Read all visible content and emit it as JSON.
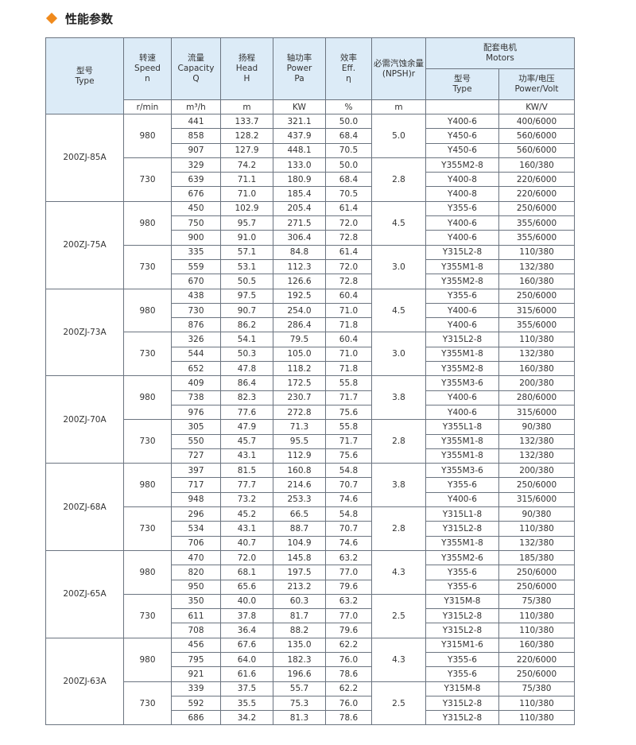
{
  "header": {
    "title": "性能参数"
  },
  "table": {
    "columns": [
      {
        "lines": [
          "型号",
          "Type"
        ]
      },
      {
        "lines": [
          "转速",
          "Speed",
          "n"
        ]
      },
      {
        "lines": [
          "流量",
          "Capacity",
          "Q"
        ]
      },
      {
        "lines": [
          "扬程",
          "Head",
          "H"
        ]
      },
      {
        "lines": [
          "轴功率",
          "Power",
          "Pa"
        ]
      },
      {
        "lines": [
          "效率",
          "Eff.",
          "η"
        ]
      },
      {
        "lines": [
          "必需汽蚀余量",
          "(NPSH)r"
        ]
      },
      {
        "lines": [
          "配套电机",
          "Motors"
        ],
        "sub": [
          {
            "lines": [
              "型号",
              "Type"
            ]
          },
          {
            "lines": [
              "功率/电压",
              "Power/Volt"
            ]
          }
        ]
      }
    ],
    "units": [
      "r/min",
      "m³/h",
      "m",
      "KW",
      "%",
      "m",
      null,
      "KW/V"
    ],
    "models": [
      {
        "type": "200ZJ-85A",
        "speeds": [
          {
            "speed": "980",
            "npsh": "5.0",
            "rows": [
              [
                "441",
                "133.7",
                "321.1",
                "50.0",
                "Y400-6",
                "400/6000"
              ],
              [
                "858",
                "128.2",
                "437.9",
                "68.4",
                "Y450-6",
                "560/6000"
              ],
              [
                "907",
                "127.9",
                "448.1",
                "70.5",
                "Y450-6",
                "560/6000"
              ]
            ]
          },
          {
            "speed": "730",
            "npsh": "2.8",
            "rows": [
              [
                "329",
                "74.2",
                "133.0",
                "50.0",
                "Y355M2-8",
                "160/380"
              ],
              [
                "639",
                "71.1",
                "180.9",
                "68.4",
                "Y400-8",
                "220/6000"
              ],
              [
                "676",
                "71.0",
                "185.4",
                "70.5",
                "Y400-8",
                "220/6000"
              ]
            ]
          }
        ]
      },
      {
        "type": "200ZJ-75A",
        "speeds": [
          {
            "speed": "980",
            "npsh": "4.5",
            "rows": [
              [
                "450",
                "102.9",
                "205.4",
                "61.4",
                "Y355-6",
                "250/6000"
              ],
              [
                "750",
                "95.7",
                "271.5",
                "72.0",
                "Y400-6",
                "355/6000"
              ],
              [
                "900",
                "91.0",
                "306.4",
                "72.8",
                "Y400-6",
                "355/6000"
              ]
            ]
          },
          {
            "speed": "730",
            "npsh": "3.0",
            "rows": [
              [
                "335",
                "57.1",
                "84.8",
                "61.4",
                "Y315L2-8",
                "110/380"
              ],
              [
                "559",
                "53.1",
                "112.3",
                "72.0",
                "Y355M1-8",
                "132/380"
              ],
              [
                "670",
                "50.5",
                "126.6",
                "72.8",
                "Y355M2-8",
                "160/380"
              ]
            ]
          }
        ]
      },
      {
        "type": "200ZJ-73A",
        "speeds": [
          {
            "speed": "980",
            "npsh": "4.5",
            "rows": [
              [
                "438",
                "97.5",
                "192.5",
                "60.4",
                "Y355-6",
                "250/6000"
              ],
              [
                "730",
                "90.7",
                "254.0",
                "71.0",
                "Y400-6",
                "315/6000"
              ],
              [
                "876",
                "86.2",
                "286.4",
                "71.8",
                "Y400-6",
                "355/6000"
              ]
            ]
          },
          {
            "speed": "730",
            "npsh": "3.0",
            "rows": [
              [
                "326",
                "54.1",
                "79.5",
                "60.4",
                "Y315L2-8",
                "110/380"
              ],
              [
                "544",
                "50.3",
                "105.0",
                "71.0",
                "Y355M1-8",
                "132/380"
              ],
              [
                "652",
                "47.8",
                "118.2",
                "71.8",
                "Y355M2-8",
                "160/380"
              ]
            ]
          }
        ]
      },
      {
        "type": "200ZJ-70A",
        "speeds": [
          {
            "speed": "980",
            "npsh": "3.8",
            "rows": [
              [
                "409",
                "86.4",
                "172.5",
                "55.8",
                "Y355M3-6",
                "200/380"
              ],
              [
                "738",
                "82.3",
                "230.7",
                "71.7",
                "Y400-6",
                "280/6000"
              ],
              [
                "976",
                "77.6",
                "272.8",
                "75.6",
                "Y400-6",
                "315/6000"
              ]
            ]
          },
          {
            "speed": "730",
            "npsh": "2.8",
            "rows": [
              [
                "305",
                "47.9",
                "71.3",
                "55.8",
                "Y355L1-8",
                "90/380"
              ],
              [
                "550",
                "45.7",
                "95.5",
                "71.7",
                "Y355M1-8",
                "132/380"
              ],
              [
                "727",
                "43.1",
                "112.9",
                "75.6",
                "Y355M1-8",
                "132/380"
              ]
            ]
          }
        ]
      },
      {
        "type": "200ZJ-68A",
        "speeds": [
          {
            "speed": "980",
            "npsh": "3.8",
            "rows": [
              [
                "397",
                "81.5",
                "160.8",
                "54.8",
                "Y355M3-6",
                "200/380"
              ],
              [
                "717",
                "77.7",
                "214.6",
                "70.7",
                "Y355-6",
                "250/6000"
              ],
              [
                "948",
                "73.2",
                "253.3",
                "74.6",
                "Y400-6",
                "315/6000"
              ]
            ]
          },
          {
            "speed": "730",
            "npsh": "2.8",
            "rows": [
              [
                "296",
                "45.2",
                "66.5",
                "54.8",
                "Y315L1-8",
                "90/380"
              ],
              [
                "534",
                "43.1",
                "88.7",
                "70.7",
                "Y315L2-8",
                "110/380"
              ],
              [
                "706",
                "40.7",
                "104.9",
                "74.6",
                "Y355M1-8",
                "132/380"
              ]
            ]
          }
        ]
      },
      {
        "type": "200ZJ-65A",
        "speeds": [
          {
            "speed": "980",
            "npsh": "4.3",
            "rows": [
              [
                "470",
                "72.0",
                "145.8",
                "63.2",
                "Y355M2-6",
                "185/380"
              ],
              [
                "820",
                "68.1",
                "197.5",
                "77.0",
                "Y355-6",
                "250/6000"
              ],
              [
                "950",
                "65.6",
                "213.2",
                "79.6",
                "Y355-6",
                "250/6000"
              ]
            ]
          },
          {
            "speed": "730",
            "npsh": "2.5",
            "rows": [
              [
                "350",
                "40.0",
                "60.3",
                "63.2",
                "Y315M-8",
                "75/380"
              ],
              [
                "611",
                "37.8",
                "81.7",
                "77.0",
                "Y315L2-8",
                "110/380"
              ],
              [
                "708",
                "36.4",
                "88.2",
                "79.6",
                "Y315L2-8",
                "110/380"
              ]
            ]
          }
        ]
      },
      {
        "type": "200ZJ-63A",
        "speeds": [
          {
            "speed": "980",
            "npsh": "4.3",
            "rows": [
              [
                "456",
                "67.6",
                "135.0",
                "62.2",
                "Y315M1-6",
                "160/380"
              ],
              [
                "795",
                "64.0",
                "182.3",
                "76.0",
                "Y355-6",
                "220/6000"
              ],
              [
                "921",
                "61.6",
                "196.6",
                "78.6",
                "Y355-6",
                "250/6000"
              ]
            ]
          },
          {
            "speed": "730",
            "npsh": "2.5",
            "rows": [
              [
                "339",
                "37.5",
                "55.7",
                "62.2",
                "Y315M-8",
                "75/380"
              ],
              [
                "592",
                "35.5",
                "75.3",
                "76.0",
                "Y315L2-8",
                "110/380"
              ],
              [
                "686",
                "34.2",
                "81.3",
                "78.6",
                "Y315L2-8",
                "110/380"
              ]
            ]
          }
        ]
      }
    ]
  }
}
